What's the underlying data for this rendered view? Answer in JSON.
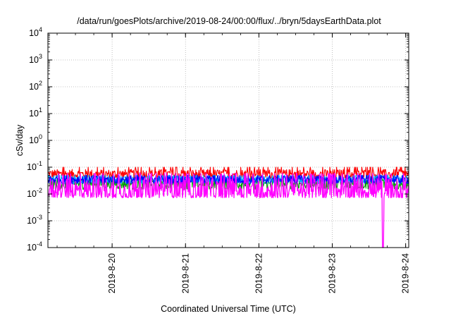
{
  "chart_data": {
    "type": "line",
    "title": "/data/run/goesPlots/archive/2019-08-24/00:00/flux/../bryn/5daysEarthData.plot",
    "xlabel": "Coordinated Universal Time (UTC)",
    "ylabel": "cSv/day",
    "yscale": "log",
    "ylim": [
      0.0001,
      10000
    ],
    "xlim": [
      "2019-08-19T03:00",
      "2019-08-24T01:00"
    ],
    "x_ticks": [
      "2019-8-20",
      "2019-8-21",
      "2019-8-22",
      "2019-8-23",
      "2019-8-24"
    ],
    "y_ticks": [
      {
        "base": "10",
        "exp": "-4"
      },
      {
        "base": "10",
        "exp": "-3"
      },
      {
        "base": "10",
        "exp": "-2"
      },
      {
        "base": "10",
        "exp": "-1"
      },
      {
        "base": "10",
        "exp": "0"
      },
      {
        "base": "10",
        "exp": "1"
      },
      {
        "base": "10",
        "exp": "2"
      },
      {
        "base": "10",
        "exp": "3"
      },
      {
        "base": "10",
        "exp": "4"
      }
    ],
    "grid": true,
    "legend": "none",
    "series": [
      {
        "color": "#ff0000",
        "approx_range": [
          0.03,
          0.1
        ]
      },
      {
        "color": "#00a000",
        "approx_range": [
          0.012,
          0.05
        ]
      },
      {
        "color": "#0000ff",
        "approx_range": [
          0.02,
          0.06
        ]
      },
      {
        "color": "#00aaff",
        "approx_range": [
          0.02,
          0.06
        ]
      },
      {
        "color": "#ff00ff",
        "approx_range": [
          0.005,
          0.06
        ],
        "dropout": {
          "x": "2019-08-23T16:30",
          "y": 0.0001
        }
      }
    ]
  }
}
